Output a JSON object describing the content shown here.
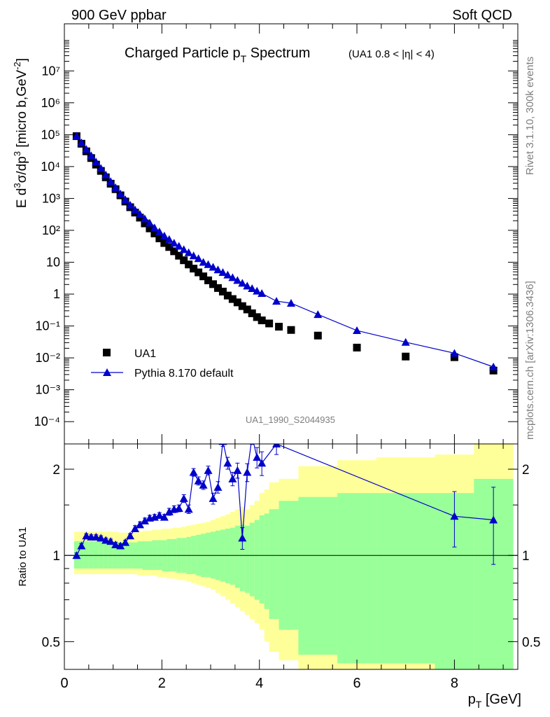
{
  "header": {
    "left": "900 GeV ppbar",
    "right": "Soft QCD"
  },
  "chart_title": {
    "main": "Charged Particle p",
    "main_sub": "T",
    "main_tail": " Spectrum",
    "qualifier": "(UA1 0.8 < |η| < 4)"
  },
  "side_labels": {
    "rivet": "Rivet 3.1.10,  300k events",
    "mcplots": "mcplots.cern.ch [arXiv:1306.3436]"
  },
  "analysis_id": "UA1_1990_S2044935",
  "colors": {
    "data": "#000000",
    "mc": "#0000cc",
    "band_outer": "#ffff99",
    "band_inner": "#99ff99"
  },
  "chart_data": [
    {
      "type": "scatter",
      "panel": "main",
      "ylabel": "E d³σ/dp³ [micro b,GeV⁻²]",
      "yscale": "log",
      "ylim": [
        2e-05,
        300000000
      ],
      "xlim": [
        0,
        9.3
      ],
      "y_ticks": [
        {
          "value": 0.0001,
          "label": "10⁻⁴"
        },
        {
          "value": 0.001,
          "label": "10⁻³"
        },
        {
          "value": 0.01,
          "label": "10⁻²"
        },
        {
          "value": 0.1,
          "label": "10⁻¹"
        },
        {
          "value": 1,
          "label": "1"
        },
        {
          "value": 10,
          "label": "10"
        },
        {
          "value": 100,
          "label": "10²"
        },
        {
          "value": 1000,
          "label": "10³"
        },
        {
          "value": 10000,
          "label": "10⁴"
        },
        {
          "value": 100000,
          "label": "10⁵"
        },
        {
          "value": 1000000,
          "label": "10⁶"
        },
        {
          "value": 10000000,
          "label": "10⁷"
        }
      ],
      "series": [
        {
          "name": "UA1",
          "marker": "square",
          "x": [
            0.25,
            0.35,
            0.45,
            0.55,
            0.65,
            0.75,
            0.85,
            0.95,
            1.05,
            1.15,
            1.25,
            1.35,
            1.45,
            1.55,
            1.65,
            1.75,
            1.85,
            1.95,
            2.05,
            2.15,
            2.25,
            2.35,
            2.45,
            2.55,
            2.65,
            2.75,
            2.85,
            2.95,
            3.05,
            3.15,
            3.25,
            3.35,
            3.45,
            3.55,
            3.65,
            3.75,
            3.85,
            3.95,
            4.05,
            4.2,
            4.4,
            4.65,
            5.2,
            6.0,
            7.0,
            8.0,
            8.8
          ],
          "y": [
            90000,
            52000,
            30000,
            18500,
            11500,
            7300,
            4600,
            2900,
            1950,
            1250,
            800,
            530,
            360,
            250,
            165,
            115,
            80,
            56,
            40,
            30,
            22,
            16,
            11.5,
            8.5,
            6.3,
            4.8,
            3.6,
            2.7,
            2.05,
            1.55,
            1.2,
            0.9,
            0.7,
            0.55,
            0.42,
            0.33,
            0.25,
            0.19,
            0.15,
            0.12,
            0.095,
            0.075,
            0.05,
            0.021,
            0.011,
            0.0105,
            0.004
          ]
        },
        {
          "name": "Pythia 8.170 default",
          "marker": "triangle",
          "x": [
            0.25,
            0.35,
            0.45,
            0.55,
            0.65,
            0.75,
            0.85,
            0.95,
            1.05,
            1.15,
            1.25,
            1.35,
            1.45,
            1.55,
            1.65,
            1.75,
            1.85,
            1.95,
            2.05,
            2.15,
            2.25,
            2.35,
            2.45,
            2.55,
            2.65,
            2.75,
            2.85,
            2.95,
            3.05,
            3.15,
            3.25,
            3.35,
            3.45,
            3.55,
            3.65,
            3.75,
            3.85,
            3.95,
            4.05,
            4.35,
            4.65,
            5.2,
            6.0,
            7.0,
            8.0,
            8.8
          ],
          "y": [
            90000,
            56000,
            35000,
            22000,
            14000,
            8800,
            5500,
            3400,
            2200,
            1400,
            920,
            620,
            440,
            320,
            230,
            170,
            120,
            90,
            67,
            52,
            40,
            32,
            25,
            20,
            16,
            13,
            10,
            8.5,
            7,
            5.8,
            4.8,
            4,
            3.3,
            2.7,
            2.2,
            1.8,
            1.5,
            1.25,
            1.05,
            0.6,
            0.52,
            0.23,
            0.072,
            0.031,
            0.014,
            0.0052
          ],
          "yerr_last": 0.0015
        }
      ]
    },
    {
      "type": "line",
      "panel": "ratio",
      "ylabel": "Ratio to UA1",
      "xlabel": "p_T [GeV]",
      "xlim": [
        0,
        9.3
      ],
      "ylim": [
        0.4,
        2.45
      ],
      "yscale": "log",
      "x_ticks": [
        "0",
        "2",
        "4",
        "6",
        "8"
      ],
      "y_ticks": [
        "0.5",
        "1",
        "2"
      ],
      "bands": {
        "edges": [
          0.2,
          0.3,
          0.4,
          0.5,
          0.6,
          0.7,
          0.8,
          0.9,
          1.0,
          1.1,
          1.2,
          1.3,
          1.4,
          1.5,
          1.6,
          1.7,
          1.8,
          1.9,
          2.0,
          2.1,
          2.2,
          2.3,
          2.4,
          2.5,
          2.6,
          2.7,
          2.8,
          2.9,
          3.0,
          3.1,
          3.2,
          3.3,
          3.4,
          3.5,
          3.6,
          3.7,
          3.8,
          3.9,
          4.0,
          4.1,
          4.2,
          4.4,
          4.8,
          5.6,
          6.4,
          7.6,
          8.4,
          9.2
        ],
        "yellow_hi": [
          1.21,
          1.21,
          1.21,
          1.21,
          1.21,
          1.21,
          1.21,
          1.21,
          1.21,
          1.2,
          1.2,
          1.2,
          1.2,
          1.21,
          1.22,
          1.22,
          1.23,
          1.23,
          1.24,
          1.24,
          1.25,
          1.25,
          1.26,
          1.27,
          1.28,
          1.29,
          1.3,
          1.31,
          1.33,
          1.35,
          1.37,
          1.39,
          1.42,
          1.45,
          1.48,
          1.45,
          1.5,
          1.55,
          1.65,
          1.7,
          1.8,
          1.85,
          2.05,
          2.15,
          2.2,
          2.25,
          2.5
        ],
        "yellow_lo": [
          0.86,
          0.86,
          0.86,
          0.86,
          0.86,
          0.86,
          0.86,
          0.86,
          0.86,
          0.86,
          0.86,
          0.86,
          0.86,
          0.85,
          0.85,
          0.85,
          0.85,
          0.84,
          0.84,
          0.83,
          0.83,
          0.82,
          0.82,
          0.81,
          0.8,
          0.79,
          0.78,
          0.77,
          0.76,
          0.74,
          0.72,
          0.7,
          0.68,
          0.66,
          0.64,
          0.62,
          0.6,
          0.58,
          0.55,
          0.5,
          0.46,
          0.43,
          0.4,
          0.4,
          0.4,
          0.4,
          0.4
        ],
        "green_hi": [
          1.12,
          1.12,
          1.12,
          1.12,
          1.12,
          1.12,
          1.12,
          1.12,
          1.12,
          1.11,
          1.11,
          1.11,
          1.11,
          1.12,
          1.12,
          1.12,
          1.13,
          1.13,
          1.13,
          1.14,
          1.14,
          1.15,
          1.15,
          1.16,
          1.17,
          1.18,
          1.19,
          1.2,
          1.21,
          1.22,
          1.23,
          1.24,
          1.25,
          1.27,
          1.28,
          1.27,
          1.3,
          1.33,
          1.38,
          1.4,
          1.45,
          1.55,
          1.6,
          1.65,
          1.65,
          1.65,
          1.85
        ],
        "green_lo": [
          0.9,
          0.9,
          0.9,
          0.9,
          0.9,
          0.9,
          0.9,
          0.9,
          0.9,
          0.9,
          0.9,
          0.9,
          0.9,
          0.9,
          0.89,
          0.89,
          0.89,
          0.89,
          0.88,
          0.88,
          0.88,
          0.87,
          0.87,
          0.86,
          0.86,
          0.85,
          0.84,
          0.84,
          0.83,
          0.82,
          0.81,
          0.8,
          0.79,
          0.77,
          0.75,
          0.74,
          0.72,
          0.7,
          0.68,
          0.65,
          0.6,
          0.55,
          0.45,
          0.42,
          0.42,
          0.4,
          0.4
        ]
      },
      "series": [
        {
          "name": "Pythia 8.170 default / UA1",
          "x": [
            0.25,
            0.35,
            0.45,
            0.55,
            0.65,
            0.75,
            0.85,
            0.95,
            1.05,
            1.15,
            1.25,
            1.35,
            1.45,
            1.55,
            1.65,
            1.75,
            1.85,
            1.95,
            2.05,
            2.15,
            2.25,
            2.35,
            2.45,
            2.55,
            2.65,
            2.75,
            2.85,
            2.95,
            3.05,
            3.15,
            3.25,
            3.35,
            3.45,
            3.55,
            3.65,
            3.75,
            3.85,
            3.95,
            4.05,
            4.35,
            8.0,
            8.8
          ],
          "y": [
            1.0,
            1.08,
            1.17,
            1.16,
            1.16,
            1.15,
            1.13,
            1.12,
            1.09,
            1.08,
            1.11,
            1.17,
            1.24,
            1.28,
            1.32,
            1.35,
            1.36,
            1.38,
            1.36,
            1.42,
            1.45,
            1.46,
            1.58,
            1.45,
            1.95,
            1.82,
            1.76,
            1.98,
            1.58,
            1.73,
            2.5,
            2.1,
            1.85,
            1.98,
            1.15,
            1.95,
            2.6,
            2.2,
            2.1,
            2.45,
            1.37,
            1.33
          ],
          "yerr": [
            0.02,
            0.02,
            0.02,
            0.02,
            0.02,
            0.02,
            0.02,
            0.02,
            0.02,
            0.02,
            0.02,
            0.02,
            0.03,
            0.03,
            0.03,
            0.03,
            0.03,
            0.03,
            0.03,
            0.04,
            0.04,
            0.04,
            0.05,
            0.05,
            0.06,
            0.06,
            0.06,
            0.07,
            0.07,
            0.08,
            0.1,
            0.1,
            0.1,
            0.12,
            0.1,
            0.14,
            0.16,
            0.18,
            0.2,
            0.2,
            0.3,
            0.4
          ]
        }
      ]
    }
  ]
}
